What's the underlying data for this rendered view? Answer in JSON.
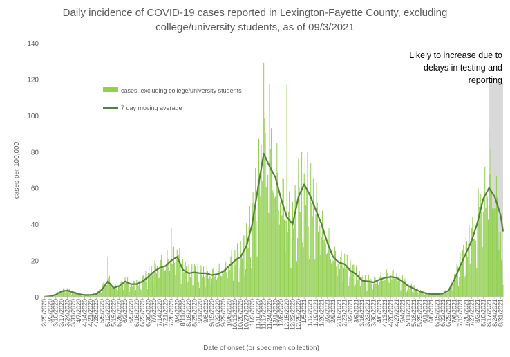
{
  "chart_data": {
    "type": "bar",
    "title_lines": [
      "Daily incidence of COVID-19 cases reported in Lexington-Fayette County, excluding",
      "college/university students, as of 09/3/2021"
    ],
    "xlabel": "Date of onset (or specimen collection)",
    "ylabel": "cases per 100,000",
    "ylim": [
      0,
      140
    ],
    "yticks": [
      0,
      20,
      40,
      60,
      80,
      100,
      120,
      140
    ],
    "xtick_labels": [
      "2/25/2020",
      "3/3/2020",
      "3/10/2020",
      "3/17/2020",
      "3/24/2020",
      "3/31/2020",
      "4/7/2020",
      "4/14/2020",
      "4/21/2020",
      "4/28/2020",
      "5/5/2020",
      "5/12/2020",
      "5/19/2020",
      "5/26/2020",
      "6/2/2020",
      "6/9/2020",
      "6/16/2020",
      "6/23/2020",
      "6/30/2020",
      "7/7/2020",
      "7/14/2020",
      "7/21/2020",
      "7/28/2020",
      "8/4/2020",
      "8/11/2020",
      "8/18/2020",
      "8/25/2020",
      "9/1/2020",
      "9/8/2020",
      "9/15/2020",
      "9/22/2020",
      "9/29/2020",
      "10/6/2020",
      "10/13/2020",
      "10/20/2020",
      "10/27/2020",
      "11/3/2020",
      "11/10/2020",
      "11/17/2020",
      "11/24/2020",
      "12/1/2020",
      "12/8/2020",
      "12/15/2020",
      "12/22/2020",
      "12/29/2020",
      "1/5/2021",
      "1/12/2021",
      "1/19/2021",
      "1/26/2021",
      "2/2/2021",
      "2/9/2021",
      "2/16/2021",
      "2/23/2021",
      "3/2/2021",
      "3/9/2021",
      "3/16/2021",
      "3/23/2021",
      "3/30/2021",
      "4/6/2021",
      "4/13/2021",
      "4/20/2021",
      "4/27/2021",
      "5/4/2021",
      "5/11/2021",
      "5/18/2021",
      "5/25/2021",
      "6/1/2021",
      "6/8/2021",
      "6/15/2021",
      "6/22/2021",
      "6/29/2021",
      "7/6/2021",
      "7/13/2021",
      "7/20/2021",
      "7/27/2021",
      "8/3/2021",
      "8/10/2021",
      "8/17/2021",
      "8/24/2021",
      "8/31/2021"
    ],
    "x_weekly": [
      "2/25/2020",
      "3/3/2020",
      "3/10/2020",
      "3/17/2020",
      "3/24/2020",
      "3/31/2020",
      "4/7/2020",
      "4/14/2020",
      "4/21/2020",
      "4/28/2020",
      "5/5/2020",
      "5/12/2020",
      "5/19/2020",
      "5/26/2020",
      "6/2/2020",
      "6/9/2020",
      "6/16/2020",
      "6/23/2020",
      "6/30/2020",
      "7/7/2020",
      "7/14/2020",
      "7/21/2020",
      "7/28/2020",
      "8/4/2020",
      "8/11/2020",
      "8/18/2020",
      "8/25/2020",
      "9/1/2020",
      "9/8/2020",
      "9/15/2020",
      "9/22/2020",
      "9/29/2020",
      "10/6/2020",
      "10/13/2020",
      "10/20/2020",
      "10/27/2020",
      "11/3/2020",
      "11/10/2020",
      "11/17/2020",
      "11/24/2020",
      "12/1/2020",
      "12/8/2020",
      "12/15/2020",
      "12/22/2020",
      "12/29/2020",
      "1/5/2021",
      "1/12/2021",
      "1/19/2021",
      "1/26/2021",
      "2/2/2021",
      "2/9/2021",
      "2/16/2021",
      "2/23/2021",
      "3/2/2021",
      "3/9/2021",
      "3/16/2021",
      "3/23/2021",
      "3/30/2021",
      "4/6/2021",
      "4/13/2021",
      "4/20/2021",
      "4/27/2021",
      "5/4/2021",
      "5/11/2021",
      "5/18/2021",
      "5/25/2021",
      "6/1/2021",
      "6/8/2021",
      "6/15/2021",
      "6/22/2021",
      "6/29/2021",
      "7/6/2021",
      "7/13/2021",
      "7/20/2021",
      "7/27/2021",
      "8/3/2021",
      "8/10/2021",
      "8/17/2021",
      "8/24/2021",
      "8/31/2021",
      "9/3/2021"
    ],
    "series": [
      {
        "name": "cases, excluding college/university students",
        "kind": "bar",
        "values_weekly": [
          0,
          0.5,
          1.5,
          3.5,
          4,
          2.5,
          1.5,
          1,
          1,
          2,
          5,
          10,
          5,
          6,
          9,
          7,
          7,
          9,
          12,
          15,
          17,
          18,
          21,
          23,
          16,
          13,
          14,
          13,
          13,
          12,
          13,
          15,
          18,
          21,
          23,
          30,
          42,
          62,
          76,
          71,
          66,
          55,
          45,
          40,
          56,
          63,
          56,
          48,
          40,
          30,
          22,
          19,
          19,
          15,
          13,
          9,
          9,
          8,
          10,
          11,
          12,
          11,
          9,
          6,
          5,
          3,
          2,
          1.5,
          1.5,
          2,
          4,
          10,
          18,
          25,
          32,
          42,
          55,
          62,
          56,
          35,
          5
        ]
      },
      {
        "name": "7 day moving average",
        "kind": "line",
        "values_weekly": [
          0,
          0.3,
          1.2,
          3,
          3.5,
          2.5,
          1.5,
          1,
          1,
          1.5,
          4,
          8.5,
          5,
          6,
          8.5,
          7,
          7,
          8.5,
          11,
          14,
          16,
          17,
          20,
          22,
          15,
          13,
          13.5,
          13,
          13,
          12,
          12.5,
          14,
          17,
          20,
          22,
          28,
          40,
          60,
          79,
          72,
          66,
          54,
          44,
          40,
          55,
          62,
          56,
          48,
          40,
          30,
          22,
          19,
          18,
          14.5,
          12.5,
          9,
          8.5,
          8,
          9.5,
          10.5,
          11,
          10.5,
          8.5,
          6,
          4.5,
          3,
          2,
          1.5,
          1.5,
          1.8,
          3.5,
          9.5,
          17,
          24,
          31,
          41,
          54,
          60,
          55,
          45,
          36
        ]
      }
    ],
    "bar_spikes": [
      {
        "date": "5/12/2020",
        "value": 22
      },
      {
        "date": "7/28/2020",
        "value": 38
      },
      {
        "date": "11/17/2020",
        "value": 129
      },
      {
        "date": "11/24/2020",
        "value": 117
      },
      {
        "date": "12/15/2020",
        "value": 117
      },
      {
        "date": "1/5/2021",
        "value": 68
      },
      {
        "date": "8/17/2021",
        "value": 92
      }
    ],
    "shaded_region": {
      "from": "8/17/2021",
      "to": "9/3/2021"
    },
    "annotation_lines": [
      "Likely to increase due to",
      "delays in testing and",
      "reporting"
    ],
    "legend_position": "top-left inside plot",
    "grid": false,
    "colors": {
      "bar": "#92d050",
      "line": "#548235",
      "shade": "#d9d9d9",
      "axis": "#bfbfbf",
      "text": "#595959"
    }
  }
}
